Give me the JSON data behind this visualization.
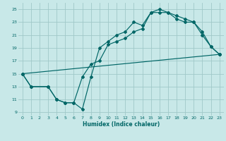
{
  "xlabel": "Humidex (Indice chaleur)",
  "bg_color": "#c8e8e8",
  "grid_color": "#a0c8c8",
  "line_color": "#006666",
  "xlim": [
    -0.5,
    23.5
  ],
  "ylim": [
    8.5,
    26.0
  ],
  "xticks": [
    0,
    1,
    2,
    3,
    4,
    5,
    6,
    7,
    8,
    9,
    10,
    11,
    12,
    13,
    14,
    15,
    16,
    17,
    18,
    19,
    20,
    21,
    22,
    23
  ],
  "yticks": [
    9,
    11,
    13,
    15,
    17,
    19,
    21,
    23,
    25
  ],
  "line1_x": [
    0,
    1,
    3,
    4,
    5,
    6,
    7,
    8,
    9,
    10,
    11,
    12,
    13,
    14,
    15,
    16,
    17,
    18,
    19,
    20,
    21,
    22,
    23
  ],
  "line1_y": [
    15,
    13,
    13,
    11,
    10.5,
    10.5,
    9.5,
    14.5,
    19,
    20,
    21,
    21.5,
    23,
    22.5,
    24.5,
    24.5,
    24.5,
    24,
    23.5,
    23,
    21,
    19.2,
    18
  ],
  "line2_x": [
    0,
    1,
    3,
    4,
    5,
    6,
    7,
    8,
    9,
    10,
    11,
    12,
    13,
    14,
    15,
    16,
    17,
    18,
    19,
    20,
    21,
    22,
    23
  ],
  "line2_y": [
    15,
    13,
    13,
    11,
    10.5,
    10.5,
    14.5,
    16.5,
    17,
    19.5,
    20,
    20.5,
    21.5,
    22,
    24.5,
    25,
    24.5,
    23.5,
    23,
    23,
    21.5,
    19.2,
    18
  ],
  "line3_x": [
    0,
    23
  ],
  "line3_y": [
    15,
    18
  ]
}
